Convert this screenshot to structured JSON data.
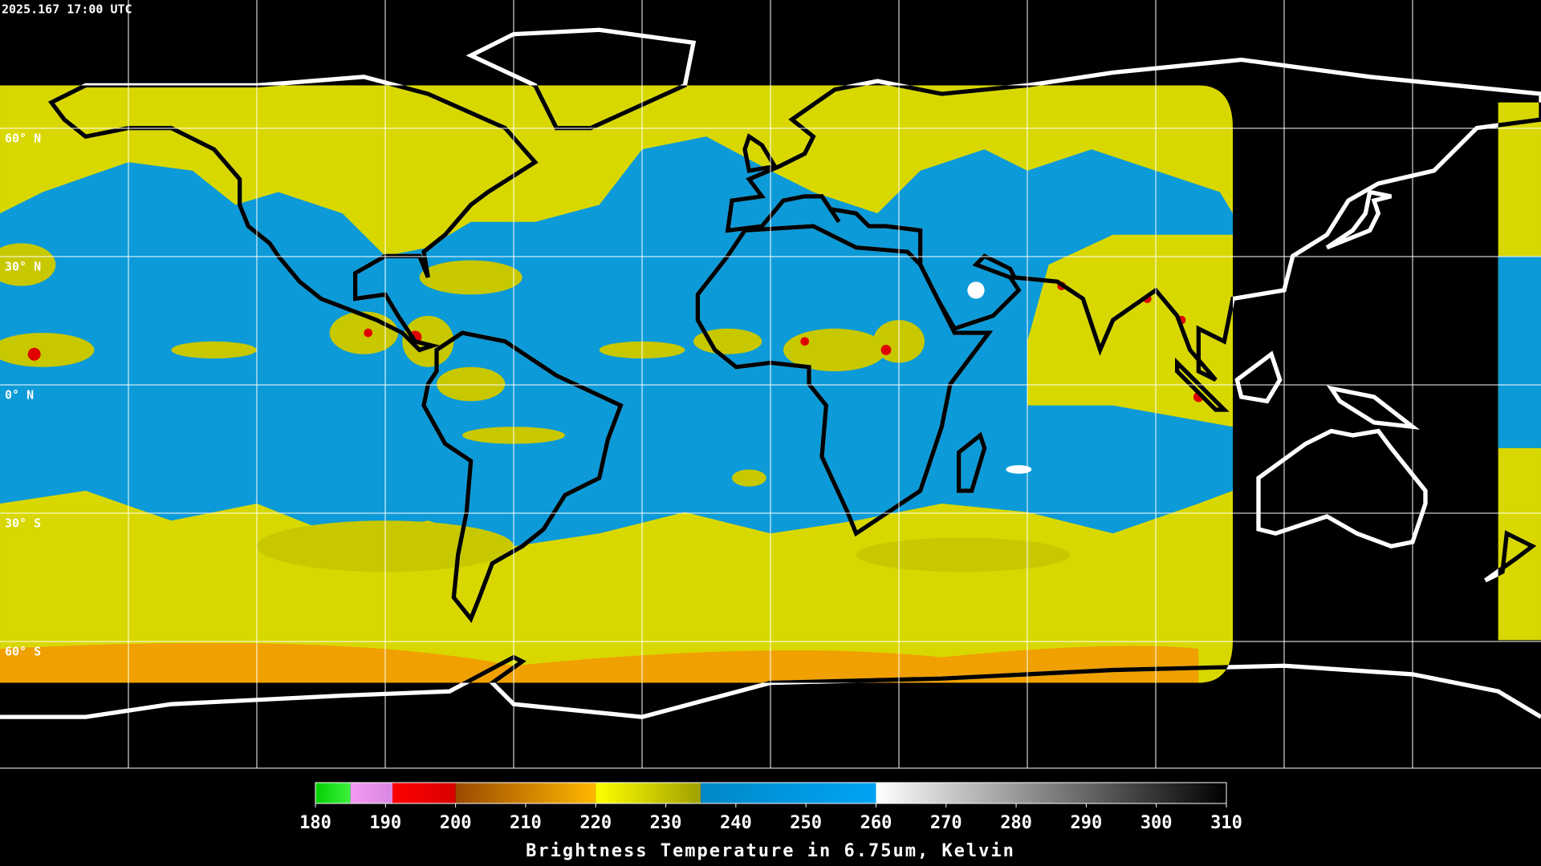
{
  "header": {
    "timestamp": "2025.167 17:00 UTC"
  },
  "map": {
    "lat_labels": [
      "60° N",
      "30° N",
      "0° N",
      "30° S",
      "60° S"
    ]
  },
  "colorbar": {
    "title": "Brightness Temperature in 6.75um, Kelvin",
    "range": [
      180,
      310
    ],
    "ticks": [
      180,
      190,
      200,
      210,
      220,
      230,
      240,
      250,
      260,
      270,
      280,
      290,
      300,
      310
    ],
    "segments": [
      {
        "from": 180,
        "to": 185,
        "colors": [
          "#00d000",
          "#40f040"
        ]
      },
      {
        "from": 185,
        "to": 191,
        "colors": [
          "#f59af5",
          "#d888e0"
        ]
      },
      {
        "from": 191,
        "to": 200,
        "colors": [
          "#ff0000",
          "#d80000"
        ]
      },
      {
        "from": 200,
        "to": 220,
        "colors": [
          "#9a4a00",
          "#ffb800"
        ]
      },
      {
        "from": 220,
        "to": 235,
        "colors": [
          "#ffff00",
          "#a0a000"
        ]
      },
      {
        "from": 235,
        "to": 260,
        "colors": [
          "#0088c8",
          "#00a4f4"
        ]
      },
      {
        "from": 260,
        "to": 310,
        "colors": [
          "#ffffff",
          "#000000"
        ]
      }
    ]
  }
}
